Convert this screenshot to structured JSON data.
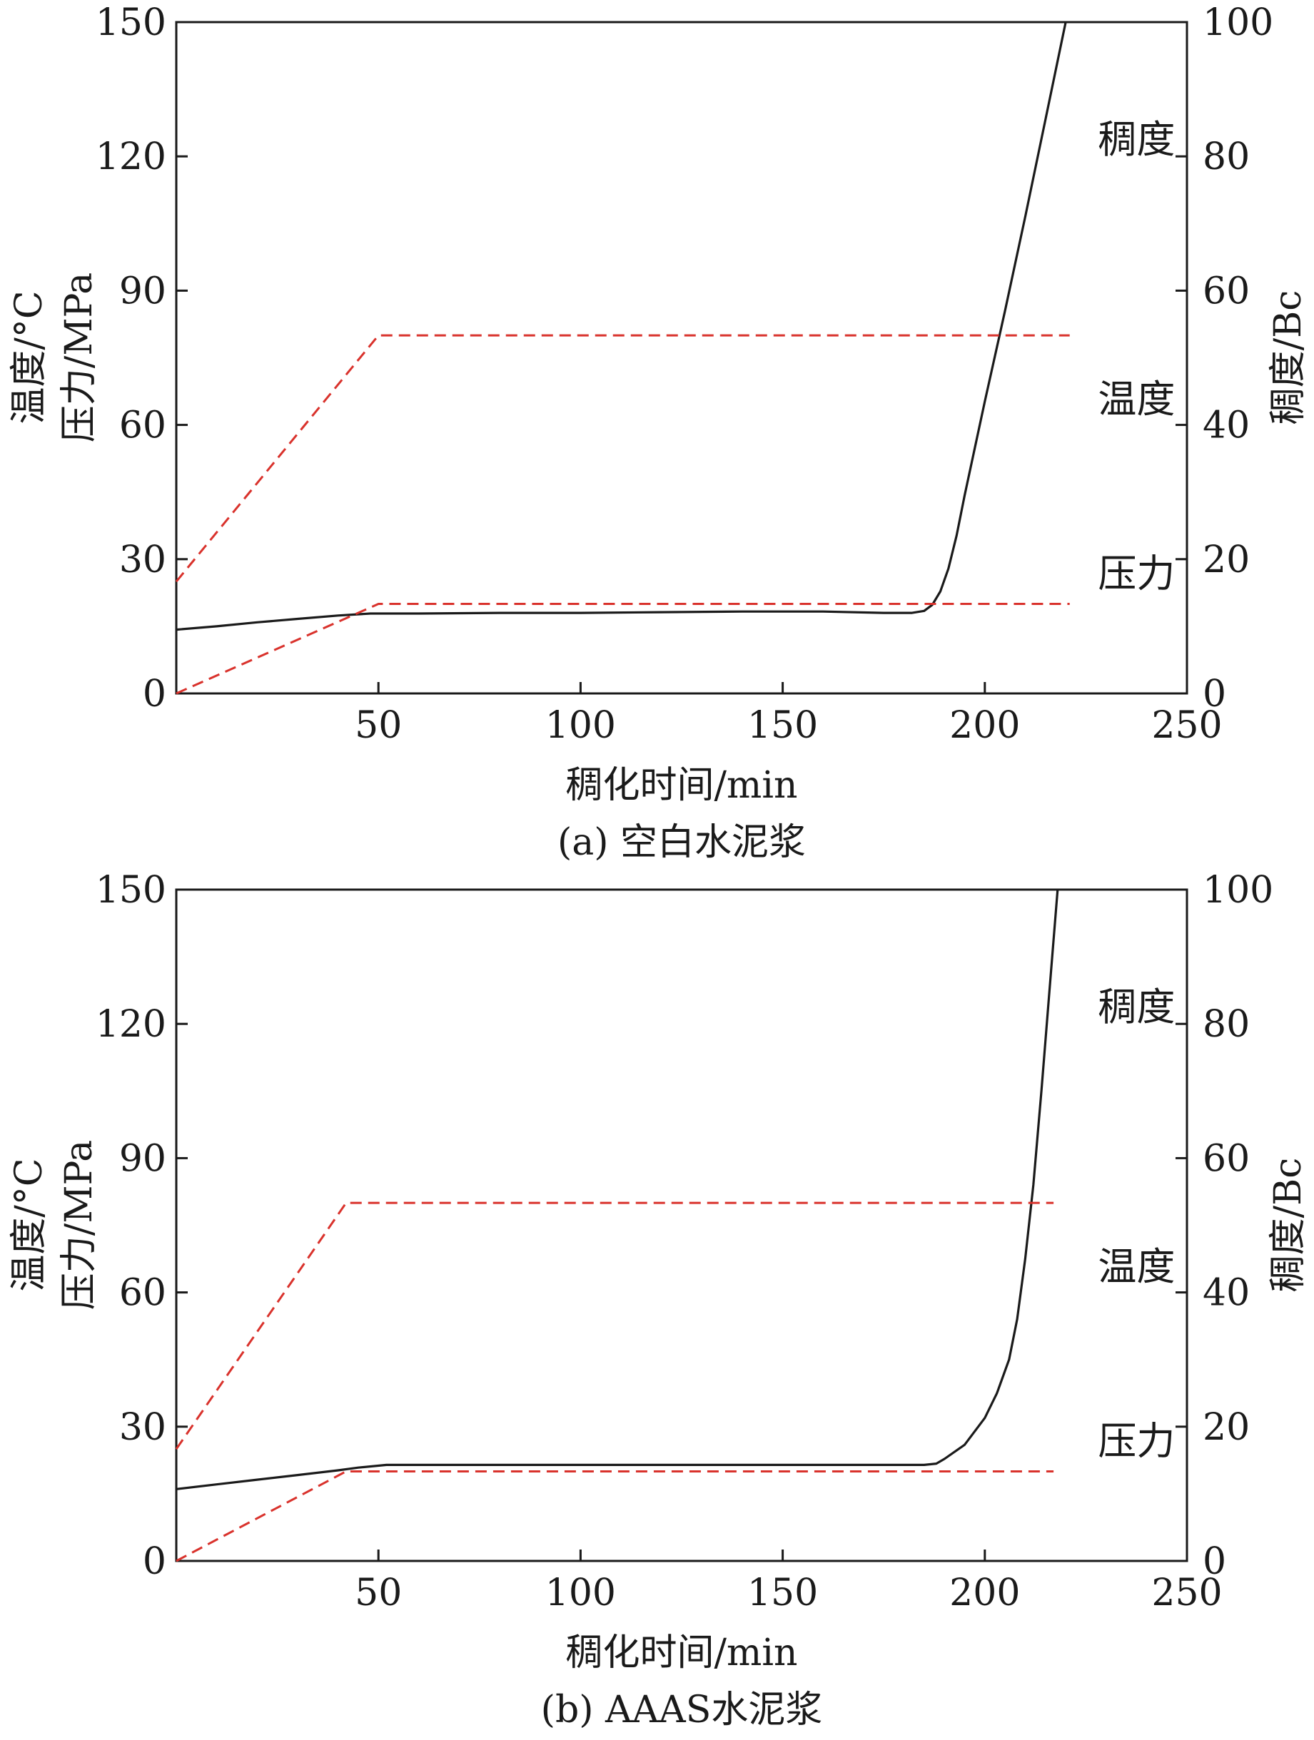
{
  "colors": {
    "consistency_line": "#1a1a1a",
    "temp_pressure_line": "#d9322c",
    "axis": "#1a1a1a"
  },
  "chart_data": [
    {
      "type": "line",
      "caption": "(a) 空白水泥浆",
      "xlabel": "稠化时间/min",
      "ylabel_left": [
        "温度/°C",
        "压力/MPa"
      ],
      "ylabel_right": "稠度/Bc",
      "xlim": [
        0,
        250
      ],
      "ylim_left": [
        0,
        150
      ],
      "ylim_right": [
        0,
        100
      ],
      "xticks": [
        50,
        100,
        150,
        200,
        250
      ],
      "yticks_left": [
        0,
        30,
        60,
        90,
        120,
        150
      ],
      "yticks_right": [
        0,
        20,
        40,
        60,
        80,
        100
      ],
      "grid": false,
      "annotations": [
        {
          "text": "稠度",
          "x": 228,
          "y": 124
        },
        {
          "text": "温度",
          "x": 228,
          "y": 66
        },
        {
          "text": "压力",
          "x": 228,
          "y": 27
        }
      ],
      "series": [
        {
          "label": "稠度",
          "axis": "right",
          "style": "solid",
          "color": "#1a1a1a",
          "x": [
            0,
            10,
            20,
            30,
            40,
            48,
            60,
            80,
            100,
            120,
            140,
            160,
            175,
            182,
            185,
            187,
            189,
            191,
            193,
            195,
            200,
            205,
            210,
            215,
            220
          ],
          "y": [
            9.5,
            10,
            10.6,
            11.1,
            11.6,
            11.9,
            11.9,
            12.0,
            12.0,
            12.1,
            12.2,
            12.2,
            12.0,
            12.0,
            12.3,
            13.2,
            15.2,
            18.6,
            23.5,
            29.5,
            43.5,
            57,
            71,
            85.5,
            100
          ]
        },
        {
          "label": "温度",
          "axis": "left",
          "style": "dashed",
          "color": "#d9322c",
          "x": [
            0,
            50,
            221
          ],
          "y": [
            25,
            80,
            80
          ]
        },
        {
          "label": "压力",
          "axis": "left",
          "style": "dashed",
          "color": "#d9322c",
          "x": [
            0,
            50,
            221
          ],
          "y": [
            0,
            20,
            20
          ]
        }
      ]
    },
    {
      "type": "line",
      "caption": "(b) AAAS水泥浆",
      "xlabel": "稠化时间/min",
      "ylabel_left": [
        "温度/°C",
        "压力/MPa"
      ],
      "ylabel_right": "稠度/Bc",
      "xlim": [
        0,
        250
      ],
      "ylim_left": [
        0,
        150
      ],
      "ylim_right": [
        0,
        100
      ],
      "xticks": [
        50,
        100,
        150,
        200,
        250
      ],
      "yticks_left": [
        0,
        30,
        60,
        90,
        120,
        150
      ],
      "yticks_right": [
        0,
        20,
        40,
        60,
        80,
        100
      ],
      "grid": false,
      "annotations": [
        {
          "text": "稠度",
          "x": 228,
          "y": 124
        },
        {
          "text": "温度",
          "x": 228,
          "y": 66
        },
        {
          "text": "压力",
          "x": 228,
          "y": 27
        }
      ],
      "series": [
        {
          "label": "稠度",
          "axis": "right",
          "style": "solid",
          "color": "#1a1a1a",
          "x": [
            0,
            10,
            20,
            30,
            40,
            45,
            52,
            80,
            120,
            160,
            185,
            188,
            190,
            195,
            200,
            203,
            206,
            208,
            210,
            212,
            214,
            216,
            218
          ],
          "y": [
            10.7,
            11.4,
            12.1,
            12.8,
            13.5,
            13.9,
            14.3,
            14.3,
            14.3,
            14.3,
            14.3,
            14.5,
            15.2,
            17.3,
            21.3,
            25,
            30,
            36,
            45,
            56,
            70,
            85,
            100
          ]
        },
        {
          "label": "温度",
          "axis": "left",
          "style": "dashed",
          "color": "#d9322c",
          "x": [
            0,
            42,
            217
          ],
          "y": [
            25,
            80,
            80
          ]
        },
        {
          "label": "压力",
          "axis": "left",
          "style": "dashed",
          "color": "#d9322c",
          "x": [
            0,
            42,
            217
          ],
          "y": [
            0,
            20,
            20
          ]
        }
      ]
    }
  ]
}
